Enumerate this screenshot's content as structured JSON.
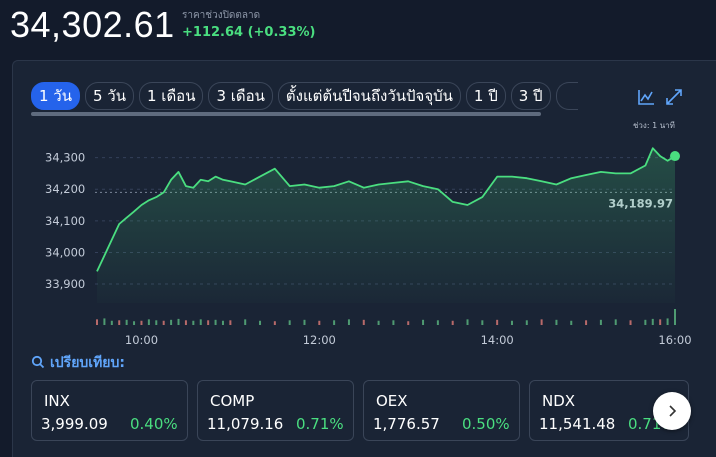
{
  "quote": {
    "price": "34,302.61",
    "close_label": "ราคาช่วงปิดตลาด",
    "change": "+112.64 (+0.33%)"
  },
  "range_tabs": [
    "1 วัน",
    "5 วัน",
    "1 เดือน",
    "3 เดือน",
    "ตั้งแต่ต้นปีจนถึงวันปัจจุบัน",
    "1 ปี",
    "3 ปี"
  ],
  "active_tab": "1 วัน",
  "interval_label": "ช่วง: 1 นาที",
  "icons": {
    "chart_type": "line-chart-icon",
    "expand": "expand-icon",
    "compare": "search-icon",
    "next": "chevron-right-icon"
  },
  "colors": {
    "line": "#4ade80",
    "positive": "#4ade80",
    "active_tab": "#2563eb",
    "accent_link": "#60a5fa"
  },
  "chart_data": {
    "type": "line",
    "x_ticks": [
      "10:00",
      "12:00",
      "14:00",
      "16:00"
    ],
    "y_ticks": [
      "34,300",
      "34,200",
      "34,100",
      "34,000",
      "33,900"
    ],
    "ylim": [
      33840,
      34340
    ],
    "previous_close": 34189.97,
    "previous_close_label": "34,189.97",
    "series": [
      {
        "x": [
          "09:30",
          "09:35",
          "09:40",
          "09:45",
          "09:50",
          "09:55",
          "10:00",
          "10:05",
          "10:10",
          "10:15",
          "10:20",
          "10:25",
          "10:30",
          "10:35",
          "10:40",
          "10:45",
          "10:50",
          "10:55",
          "11:00",
          "11:10",
          "11:20",
          "11:30",
          "11:40",
          "11:50",
          "12:00",
          "12:10",
          "12:20",
          "12:30",
          "12:40",
          "12:50",
          "13:00",
          "13:10",
          "13:20",
          "13:30",
          "13:40",
          "13:50",
          "14:00",
          "14:10",
          "14:20",
          "14:30",
          "14:40",
          "14:50",
          "15:00",
          "15:10",
          "15:20",
          "15:30",
          "15:40",
          "15:45",
          "15:50",
          "15:55",
          "16:00"
        ],
        "values": [
          33940,
          33990,
          34040,
          34090,
          34110,
          34130,
          34150,
          34165,
          34175,
          34190,
          34230,
          34255,
          34210,
          34205,
          34230,
          34225,
          34240,
          34230,
          34225,
          34215,
          34240,
          34265,
          34210,
          34215,
          34205,
          34210,
          34225,
          34205,
          34215,
          34220,
          34225,
          34210,
          34200,
          34160,
          34150,
          34175,
          34240,
          34240,
          34235,
          34225,
          34215,
          34235,
          34245,
          34255,
          34250,
          34250,
          34275,
          34330,
          34305,
          34290,
          34305
        ]
      }
    ],
    "volume": [
      12,
      14,
      9,
      10,
      11,
      8,
      9,
      12,
      10,
      9,
      11,
      13,
      10,
      9,
      12,
      10,
      11,
      9,
      10,
      12,
      9,
      8,
      10,
      11,
      9,
      10,
      12,
      11,
      9,
      10,
      8,
      11,
      10,
      9,
      12,
      10,
      11,
      9,
      10,
      12,
      11,
      9,
      10,
      11,
      12,
      10,
      11,
      13,
      12,
      14,
      34
    ]
  },
  "compare": {
    "title": "เปรียบเทียบ:",
    "items": [
      {
        "symbol": "INX",
        "value": "3,999.09",
        "change": "0.40%"
      },
      {
        "symbol": "COMP",
        "value": "11,079.16",
        "change": "0.71%"
      },
      {
        "symbol": "OEX",
        "value": "1,776.57",
        "change": "0.50%"
      },
      {
        "symbol": "NDX",
        "value": "11,541.48",
        "change": "0.71%"
      }
    ]
  }
}
